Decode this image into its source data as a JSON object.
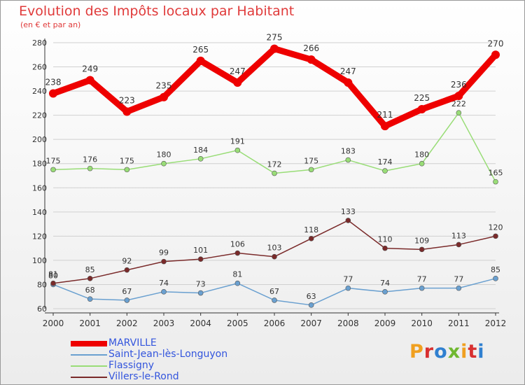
{
  "colors": {
    "title": "#e03a3a",
    "axis": "#333333",
    "grid": "#d0d0d0",
    "legend_text": "#3355dd",
    "brand": [
      "#f0a020",
      "#d83030",
      "#3080d0",
      "#70b830",
      "#f0a020",
      "#d83030",
      "#3080d0"
    ]
  },
  "chart_data": {
    "type": "line",
    "title": "Evolution des Impôts locaux par Habitant",
    "subtitle": "(en € et par an)",
    "xlabel": "",
    "ylabel": "",
    "ylim": [
      60,
      280
    ],
    "yticks": [
      60,
      80,
      100,
      120,
      140,
      160,
      180,
      200,
      220,
      240,
      260,
      280
    ],
    "grid": true,
    "legend_position": "bottom-left",
    "x": [
      "2000",
      "2001",
      "2002",
      "2003",
      "2004",
      "2005",
      "2006",
      "2007",
      "2008",
      "2009",
      "2010",
      "2011",
      "2012"
    ],
    "series": [
      {
        "name": "MARVILLE",
        "color": "#ee0000",
        "values": [
          238,
          249,
          223,
          235,
          265,
          247,
          275,
          266,
          247,
          211,
          225,
          236,
          270
        ]
      },
      {
        "name": "Saint-Jean-lès-Longuyon",
        "color": "#6aa0d0",
        "values": [
          80,
          68,
          67,
          74,
          73,
          81,
          67,
          63,
          77,
          74,
          77,
          77,
          85
        ]
      },
      {
        "name": "Flassigny",
        "color": "#99dd77",
        "values": [
          175,
          176,
          175,
          180,
          184,
          191,
          172,
          175,
          183,
          174,
          180,
          222,
          165
        ]
      },
      {
        "name": "Villers-le-Rond",
        "color": "#7a2a2a",
        "values": [
          81,
          85,
          92,
          99,
          101,
          106,
          103,
          118,
          133,
          110,
          109,
          113,
          120
        ]
      }
    ]
  },
  "logo": {
    "letters": [
      "P",
      "r",
      "o",
      "x",
      "i",
      "t",
      "i"
    ]
  }
}
